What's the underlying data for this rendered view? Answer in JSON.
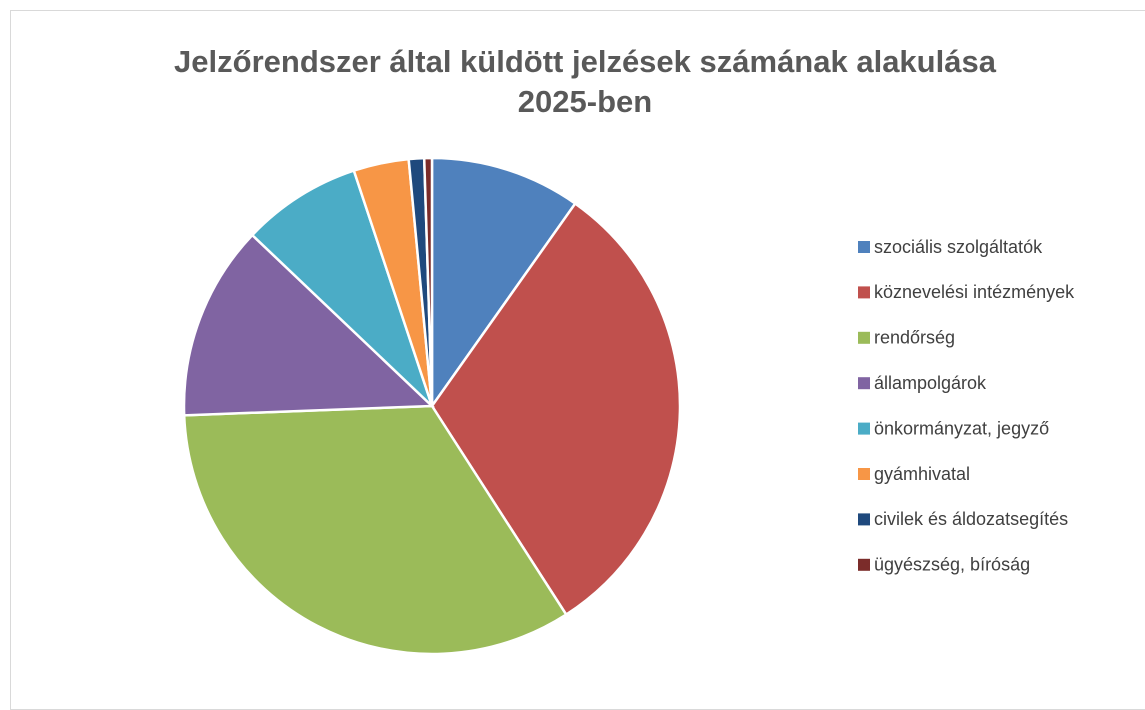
{
  "chart_data": {
    "type": "pie",
    "title": "Jelzőrendszer által küldött jelzések számának alakulása 2025-ben",
    "categories": [
      "szociális szolgáltatók",
      "köznevelési intézmények",
      "rendőrség",
      "állampolgárok",
      "önkormányzat, jegyző",
      "gyámhivatal",
      "civilek és áldozatsegítés",
      "ügyészség, bíróság"
    ],
    "values": [
      9.8,
      31.1,
      33.5,
      12.7,
      7.8,
      3.6,
      1.0,
      0.5
    ],
    "colors": [
      "#4f81bd",
      "#c0504d",
      "#9bbb59",
      "#8064a2",
      "#4bacc6",
      "#f79646",
      "#1f497d",
      "#7b2c2a"
    ],
    "legend": "right"
  }
}
